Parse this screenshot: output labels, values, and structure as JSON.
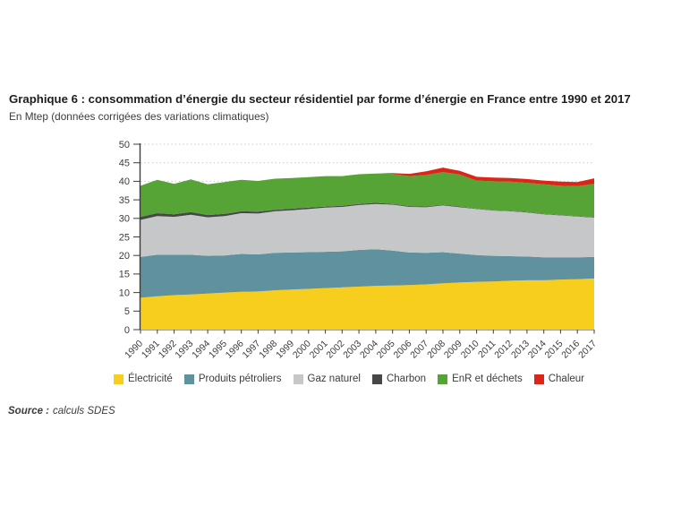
{
  "page": {
    "title": "Graphique 6 : consommation d’énergie du secteur résidentiel par forme d’énergie en France entre 1990 et 2017",
    "subtitle": "En Mtep (données corrigées des variations climatiques)",
    "source_label": "Source :",
    "source_value": "calculs SDES"
  },
  "chart_data": {
    "type": "area",
    "stacked": true,
    "title": "Consommation d’énergie du secteur résidentiel par forme d’énergie en France entre 1990 et 2017",
    "unit": "Mtep",
    "xlabel": "",
    "ylabel": "",
    "ylim": [
      0,
      50
    ],
    "ytick_step": 5,
    "grid": "horizontal-dotted",
    "legend_position": "bottom",
    "axis_color": "#3c3c3b",
    "grid_color": "#c9c9c9",
    "x": [
      1990,
      1991,
      1992,
      1993,
      1994,
      1995,
      1996,
      1997,
      1998,
      1999,
      2000,
      2001,
      2002,
      2003,
      2004,
      2005,
      2006,
      2007,
      2008,
      2009,
      2010,
      2011,
      2012,
      2013,
      2014,
      2015,
      2016,
      2017
    ],
    "series": [
      {
        "name": "Électricité",
        "color": "#F8CE1E",
        "values": [
          8.6,
          9.0,
          9.3,
          9.5,
          9.7,
          10.0,
          10.2,
          10.3,
          10.6,
          10.8,
          11.0,
          11.2,
          11.4,
          11.6,
          11.8,
          11.9,
          12.0,
          12.2,
          12.5,
          12.7,
          12.9,
          13.0,
          13.2,
          13.3,
          13.3,
          13.5,
          13.6,
          13.8
        ]
      },
      {
        "name": "Produits pétroliers",
        "color": "#60919F",
        "values": [
          11.0,
          11.2,
          10.9,
          10.7,
          10.2,
          10.0,
          10.2,
          10.0,
          10.1,
          10.0,
          9.9,
          9.8,
          9.7,
          9.9,
          9.9,
          9.4,
          8.8,
          8.5,
          8.4,
          7.8,
          7.2,
          6.9,
          6.6,
          6.4,
          6.2,
          6.0,
          5.9,
          5.8
        ]
      },
      {
        "name": "Gaz naturel",
        "color": "#C6C7C8",
        "values": [
          10.0,
          10.4,
          10.2,
          10.8,
          10.4,
          10.6,
          11.0,
          11.0,
          11.2,
          11.4,
          11.6,
          11.9,
          12.0,
          12.1,
          12.2,
          12.4,
          12.3,
          12.3,
          12.6,
          12.5,
          12.4,
          12.2,
          12.1,
          11.9,
          11.6,
          11.3,
          11.0,
          10.6
        ]
      },
      {
        "name": "Charbon",
        "color": "#474747",
        "values": [
          0.8,
          0.8,
          0.7,
          0.7,
          0.6,
          0.6,
          0.5,
          0.5,
          0.4,
          0.4,
          0.4,
          0.3,
          0.3,
          0.3,
          0.3,
          0.2,
          0.2,
          0.2,
          0.2,
          0.2,
          0.1,
          0.1,
          0.1,
          0.1,
          0.1,
          0.1,
          0.1,
          0.1
        ]
      },
      {
        "name": "EnR et déchets",
        "color": "#56A336",
        "values": [
          8.4,
          9.0,
          8.2,
          8.8,
          8.3,
          8.6,
          8.5,
          8.3,
          8.4,
          8.3,
          8.2,
          8.2,
          8.0,
          8.0,
          7.9,
          8.1,
          8.1,
          8.5,
          8.8,
          8.6,
          7.6,
          7.8,
          7.9,
          7.9,
          8.0,
          7.9,
          8.1,
          9.0
        ]
      },
      {
        "name": "Chaleur",
        "color": "#DD2517",
        "values": [
          0,
          0,
          0,
          0,
          0,
          0,
          0,
          0,
          0,
          0,
          0,
          0,
          0,
          0,
          0,
          0.2,
          0.6,
          1.0,
          1.2,
          1.0,
          1.0,
          1.0,
          1.0,
          1.0,
          1.0,
          1.1,
          1.1,
          1.5
        ]
      }
    ]
  }
}
